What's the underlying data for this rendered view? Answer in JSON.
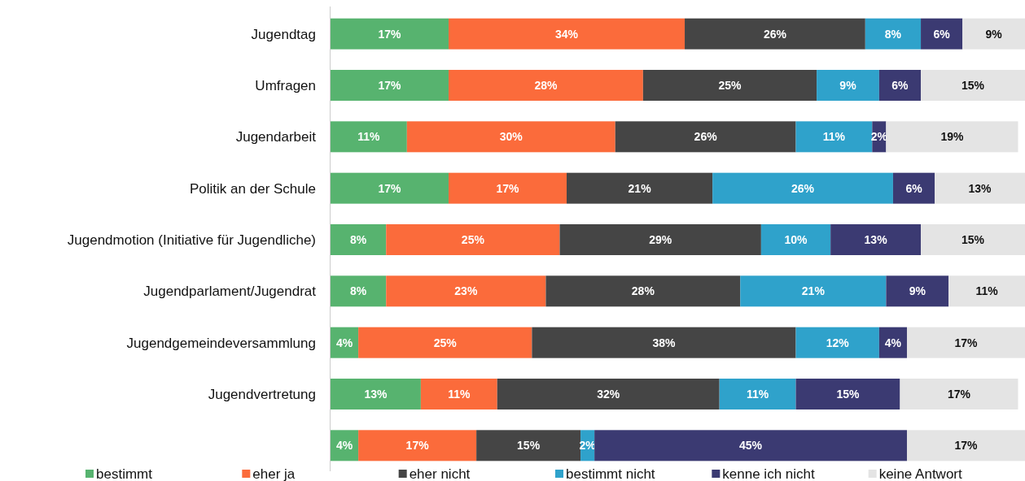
{
  "chart_data": {
    "type": "bar",
    "orientation": "horizontal",
    "stacked": true,
    "legend": "bottom",
    "categories": [
      "Jugendtag",
      "Umfragen",
      "Jugendarbeit",
      "Politik an der Schule",
      "Jugendmotion (Initiative für Jugendliche)",
      "Jugendparlament/Jugendrat",
      "Jugendgemeindeversammlung",
      "Jugendvertretung",
      null
    ],
    "series": [
      {
        "name": "bestimmt",
        "color": "#57b36f",
        "values": [
          17,
          17,
          11,
          17,
          8,
          8,
          4,
          13,
          4
        ],
        "value_labels": [
          "17%",
          "17%",
          "11%",
          "17%",
          "8%",
          "8%",
          "4%",
          "13%",
          "4%"
        ]
      },
      {
        "name": "eher ja",
        "color": "#fb6b3b",
        "values": [
          34,
          28,
          30,
          17,
          25,
          23,
          25,
          11,
          17
        ],
        "value_labels": [
          "34%",
          "28%",
          "30%",
          "17%",
          "25%",
          "23%",
          "25%",
          "11%",
          "17%"
        ]
      },
      {
        "name": "eher nicht",
        "color": "#454545",
        "values": [
          26,
          25,
          26,
          21,
          29,
          28,
          38,
          32,
          15
        ],
        "value_labels": [
          "26%",
          "25%",
          "26%",
          "21%",
          "29%",
          "28%",
          "38%",
          "32%",
          "15%"
        ]
      },
      {
        "name": "bestimmt nicht",
        "color": "#2fa2cb",
        "values": [
          8,
          9,
          11,
          26,
          10,
          21,
          12,
          11,
          2
        ],
        "value_labels": [
          "8%",
          "9%",
          "11%",
          "26%",
          "10%",
          "21%",
          "12%",
          "11%",
          "2%"
        ]
      },
      {
        "name": "kenne ich nicht",
        "color": "#3b3a72",
        "values": [
          6,
          6,
          2,
          6,
          13,
          9,
          4,
          15,
          45
        ],
        "value_labels": [
          "6%",
          "6%",
          "2%",
          "6%",
          "13%",
          "9%",
          "4%",
          "15%",
          "45%"
        ]
      },
      {
        "name": "keine Antwort",
        "color": "#e4e4e4",
        "values": [
          9,
          15,
          19,
          13,
          15,
          11,
          17,
          17,
          17
        ],
        "value_labels": [
          "9%",
          "15%",
          "19%",
          "13%",
          "15%",
          "11%",
          "17%",
          "17%",
          "17%"
        ]
      }
    ]
  }
}
